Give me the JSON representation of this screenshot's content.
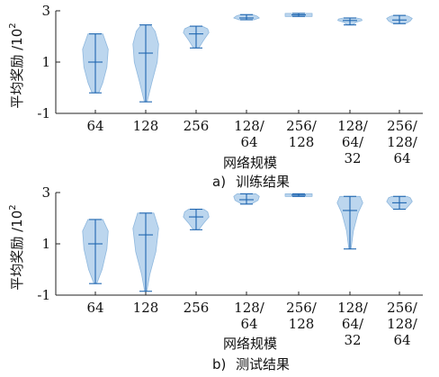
{
  "chart_data": [
    {
      "type": "violin",
      "caption_label": "a)",
      "caption_text": "训练结果",
      "xlabel": "网络规模",
      "ylabel": "平均奖励 /10",
      "ylabel_exp": "2",
      "ylim": [
        -1,
        3
      ],
      "yticks": [
        "-1",
        "1",
        "3"
      ],
      "categories": [
        [
          "64"
        ],
        [
          "128"
        ],
        [
          "256"
        ],
        [
          "128/",
          "64"
        ],
        [
          "256/",
          "128"
        ],
        [
          "128/",
          "64/",
          "32"
        ],
        [
          "256/",
          "128/",
          "64"
        ]
      ],
      "violin_color": "#bcd6ee",
      "line_color": "#1f66b0",
      "series": [
        {
          "min": -0.2,
          "max": 2.1,
          "mean": 1.0,
          "shape": [
            [
              -0.2,
              0.25
            ],
            [
              0.2,
              0.55
            ],
            [
              0.8,
              0.85
            ],
            [
              1.5,
              0.95
            ],
            [
              2.1,
              0.55
            ]
          ]
        },
        {
          "min": -0.55,
          "max": 2.45,
          "mean": 1.35,
          "shape": [
            [
              -0.55,
              0.1
            ],
            [
              0.2,
              0.45
            ],
            [
              1.0,
              0.85
            ],
            [
              1.7,
              0.95
            ],
            [
              2.2,
              0.7
            ],
            [
              2.45,
              0.35
            ]
          ]
        },
        {
          "min": 1.55,
          "max": 2.4,
          "mean": 2.1,
          "shape": [
            [
              1.55,
              0.2
            ],
            [
              1.85,
              0.55
            ],
            [
              2.15,
              0.95
            ],
            [
              2.3,
              0.85
            ],
            [
              2.4,
              0.45
            ]
          ]
        },
        {
          "min": 2.65,
          "max": 2.85,
          "mean": 2.72,
          "shape": [
            [
              2.65,
              0.55
            ],
            [
              2.72,
              0.95
            ],
            [
              2.8,
              0.75
            ],
            [
              2.85,
              0.45
            ]
          ]
        },
        {
          "min": 2.78,
          "max": 2.9,
          "mean": 2.84,
          "shape": [
            [
              2.78,
              1.0
            ],
            [
              2.84,
              1.0
            ],
            [
              2.9,
              1.0
            ]
          ]
        },
        {
          "min": 2.45,
          "max": 2.72,
          "mean": 2.62,
          "shape": [
            [
              2.45,
              0.2
            ],
            [
              2.55,
              0.45
            ],
            [
              2.62,
              0.9
            ],
            [
              2.68,
              0.85
            ],
            [
              2.72,
              0.5
            ]
          ]
        },
        {
          "min": 2.5,
          "max": 2.82,
          "mean": 2.64,
          "shape": [
            [
              2.5,
              0.45
            ],
            [
              2.6,
              0.8
            ],
            [
              2.7,
              0.95
            ],
            [
              2.78,
              0.7
            ],
            [
              2.82,
              0.4
            ]
          ]
        }
      ]
    },
    {
      "type": "violin",
      "caption_label": "b)",
      "caption_text": "测试结果",
      "xlabel": "网络规模",
      "ylabel": "平均奖励 /10",
      "ylabel_exp": "2",
      "ylim": [
        -1,
        3
      ],
      "yticks": [
        "-1",
        "1",
        "3"
      ],
      "categories": [
        [
          "64"
        ],
        [
          "128"
        ],
        [
          "256"
        ],
        [
          "128/",
          "64"
        ],
        [
          "256/",
          "128"
        ],
        [
          "128/",
          "64/",
          "32"
        ],
        [
          "256/",
          "128/",
          "64"
        ]
      ],
      "violin_color": "#bcd6ee",
      "line_color": "#1f66b0",
      "series": [
        {
          "min": -0.55,
          "max": 1.95,
          "mean": 1.0,
          "shape": [
            [
              -0.55,
              0.1
            ],
            [
              0.0,
              0.5
            ],
            [
              0.8,
              0.85
            ],
            [
              1.5,
              0.95
            ],
            [
              1.95,
              0.55
            ]
          ]
        },
        {
          "min": -0.85,
          "max": 2.2,
          "mean": 1.35,
          "shape": [
            [
              -0.85,
              0.08
            ],
            [
              -0.2,
              0.3
            ],
            [
              0.7,
              0.75
            ],
            [
              1.6,
              0.95
            ],
            [
              2.2,
              0.6
            ]
          ]
        },
        {
          "min": 1.55,
          "max": 2.35,
          "mean": 2.05,
          "shape": [
            [
              1.55,
              0.2
            ],
            [
              1.8,
              0.55
            ],
            [
              2.05,
              0.95
            ],
            [
              2.25,
              0.85
            ],
            [
              2.35,
              0.55
            ]
          ]
        },
        {
          "min": 2.55,
          "max": 2.95,
          "mean": 2.72,
          "shape": [
            [
              2.55,
              0.35
            ],
            [
              2.7,
              0.85
            ],
            [
              2.85,
              0.95
            ],
            [
              2.95,
              0.7
            ]
          ]
        },
        {
          "min": 2.85,
          "max": 2.95,
          "mean": 2.9,
          "shape": [
            [
              2.85,
              1.0
            ],
            [
              2.9,
              1.0
            ],
            [
              2.95,
              1.0
            ]
          ]
        },
        {
          "min": 0.8,
          "max": 2.85,
          "mean": 2.3,
          "shape": [
            [
              0.8,
              0.08
            ],
            [
              1.5,
              0.25
            ],
            [
              2.2,
              0.6
            ],
            [
              2.6,
              0.95
            ],
            [
              2.85,
              0.75
            ]
          ]
        },
        {
          "min": 2.35,
          "max": 2.85,
          "mean": 2.6,
          "shape": [
            [
              2.35,
              0.45
            ],
            [
              2.5,
              0.7
            ],
            [
              2.65,
              0.95
            ],
            [
              2.8,
              0.8
            ],
            [
              2.85,
              0.55
            ]
          ]
        }
      ]
    }
  ]
}
